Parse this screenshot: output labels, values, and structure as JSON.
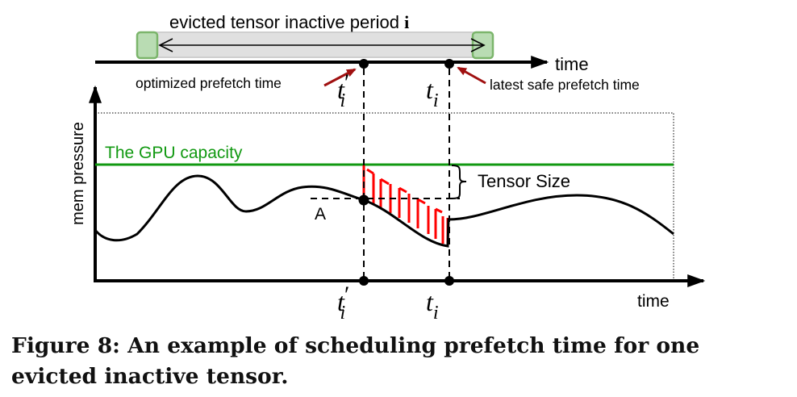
{
  "top_timeline": {
    "period_label": "evicted tensor inactive period",
    "period_index": "i",
    "axis_label": "time",
    "optimized_label": "optimized prefetch time",
    "latest_label": "latest safe prefetch time",
    "t_prime": "t",
    "t_prime_mark": "′",
    "t_sub": "i",
    "t": "t",
    "colors": {
      "bar": "#e0e0e0",
      "caps": "#b9dcb3",
      "cap_border": "#7bb56b",
      "arrows": "#a01010"
    }
  },
  "chart": {
    "ylabel": "mem pressure",
    "xlabel": "time",
    "capacity_label": "The GPU capacity",
    "point_label": "A",
    "tensor_size_label": "Tensor Size",
    "t_prime": "t",
    "t_prime_mark": "′",
    "t_sub": "i",
    "t": "t",
    "colors": {
      "capacity": "#119911",
      "fill": "#ff0000",
      "curve": "#000000"
    }
  },
  "caption": {
    "line1": "Figure 8: An example of scheduling prefetch time for one",
    "line2": "evicted inactive tensor."
  }
}
